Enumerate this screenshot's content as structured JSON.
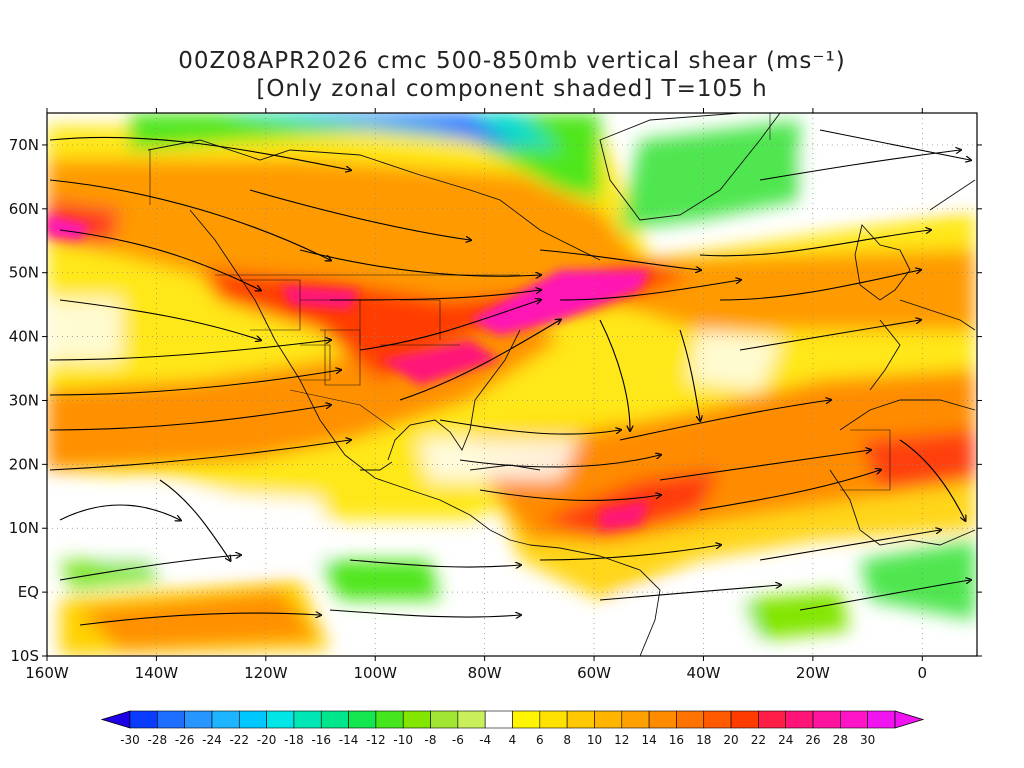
{
  "title": {
    "line1": "00Z08APR2026 cmc 500-850mb vertical shear (ms⁻¹)",
    "line2": "[Only zonal component shaded] T=105 h"
  },
  "map": {
    "lon_range": [
      -160,
      10
    ],
    "lat_range": [
      -10,
      75
    ],
    "lat_ticks": [
      {
        "value": 70,
        "label": "70N"
      },
      {
        "value": 60,
        "label": "60N"
      },
      {
        "value": 50,
        "label": "50N"
      },
      {
        "value": 40,
        "label": "40N"
      },
      {
        "value": 30,
        "label": "30N"
      },
      {
        "value": 20,
        "label": "20N"
      },
      {
        "value": 10,
        "label": "10N"
      },
      {
        "value": 0,
        "label": "EQ"
      },
      {
        "value": -10,
        "label": "10S"
      }
    ],
    "lon_ticks": [
      {
        "value": -160,
        "label": "160W"
      },
      {
        "value": -140,
        "label": "140W"
      },
      {
        "value": -120,
        "label": "120W"
      },
      {
        "value": -100,
        "label": "100W"
      },
      {
        "value": -80,
        "label": "80W"
      },
      {
        "value": -60,
        "label": "60W"
      },
      {
        "value": -40,
        "label": "40W"
      },
      {
        "value": -20,
        "label": "20W"
      },
      {
        "value": 0,
        "label": "0"
      }
    ],
    "gridlines": "dotted",
    "streamlines": true
  },
  "colorbar": {
    "labels": [
      "-30",
      "-28",
      "-26",
      "-24",
      "-22",
      "-20",
      "-18",
      "-16",
      "-14",
      "-12",
      "-10",
      "-8",
      "-6",
      "-4",
      "4",
      "6",
      "8",
      "10",
      "12",
      "14",
      "16",
      "18",
      "20",
      "22",
      "24",
      "26",
      "28",
      "30"
    ],
    "colors": [
      "#1e00e6",
      "#0a3cff",
      "#1e6eff",
      "#2896ff",
      "#1eb4ff",
      "#00c8ff",
      "#00e6e6",
      "#00e6b4",
      "#00e68c",
      "#14e650",
      "#46e61e",
      "#82e600",
      "#a0e632",
      "#c8f05a",
      "#ffffff",
      "#fff500",
      "#ffe100",
      "#ffc800",
      "#ffb400",
      "#ffa000",
      "#ff8c00",
      "#ff7300",
      "#ff5a00",
      "#ff3c00",
      "#ff1e46",
      "#ff1478",
      "#ff14a0",
      "#ff14c8",
      "#f014f0"
    ]
  }
}
